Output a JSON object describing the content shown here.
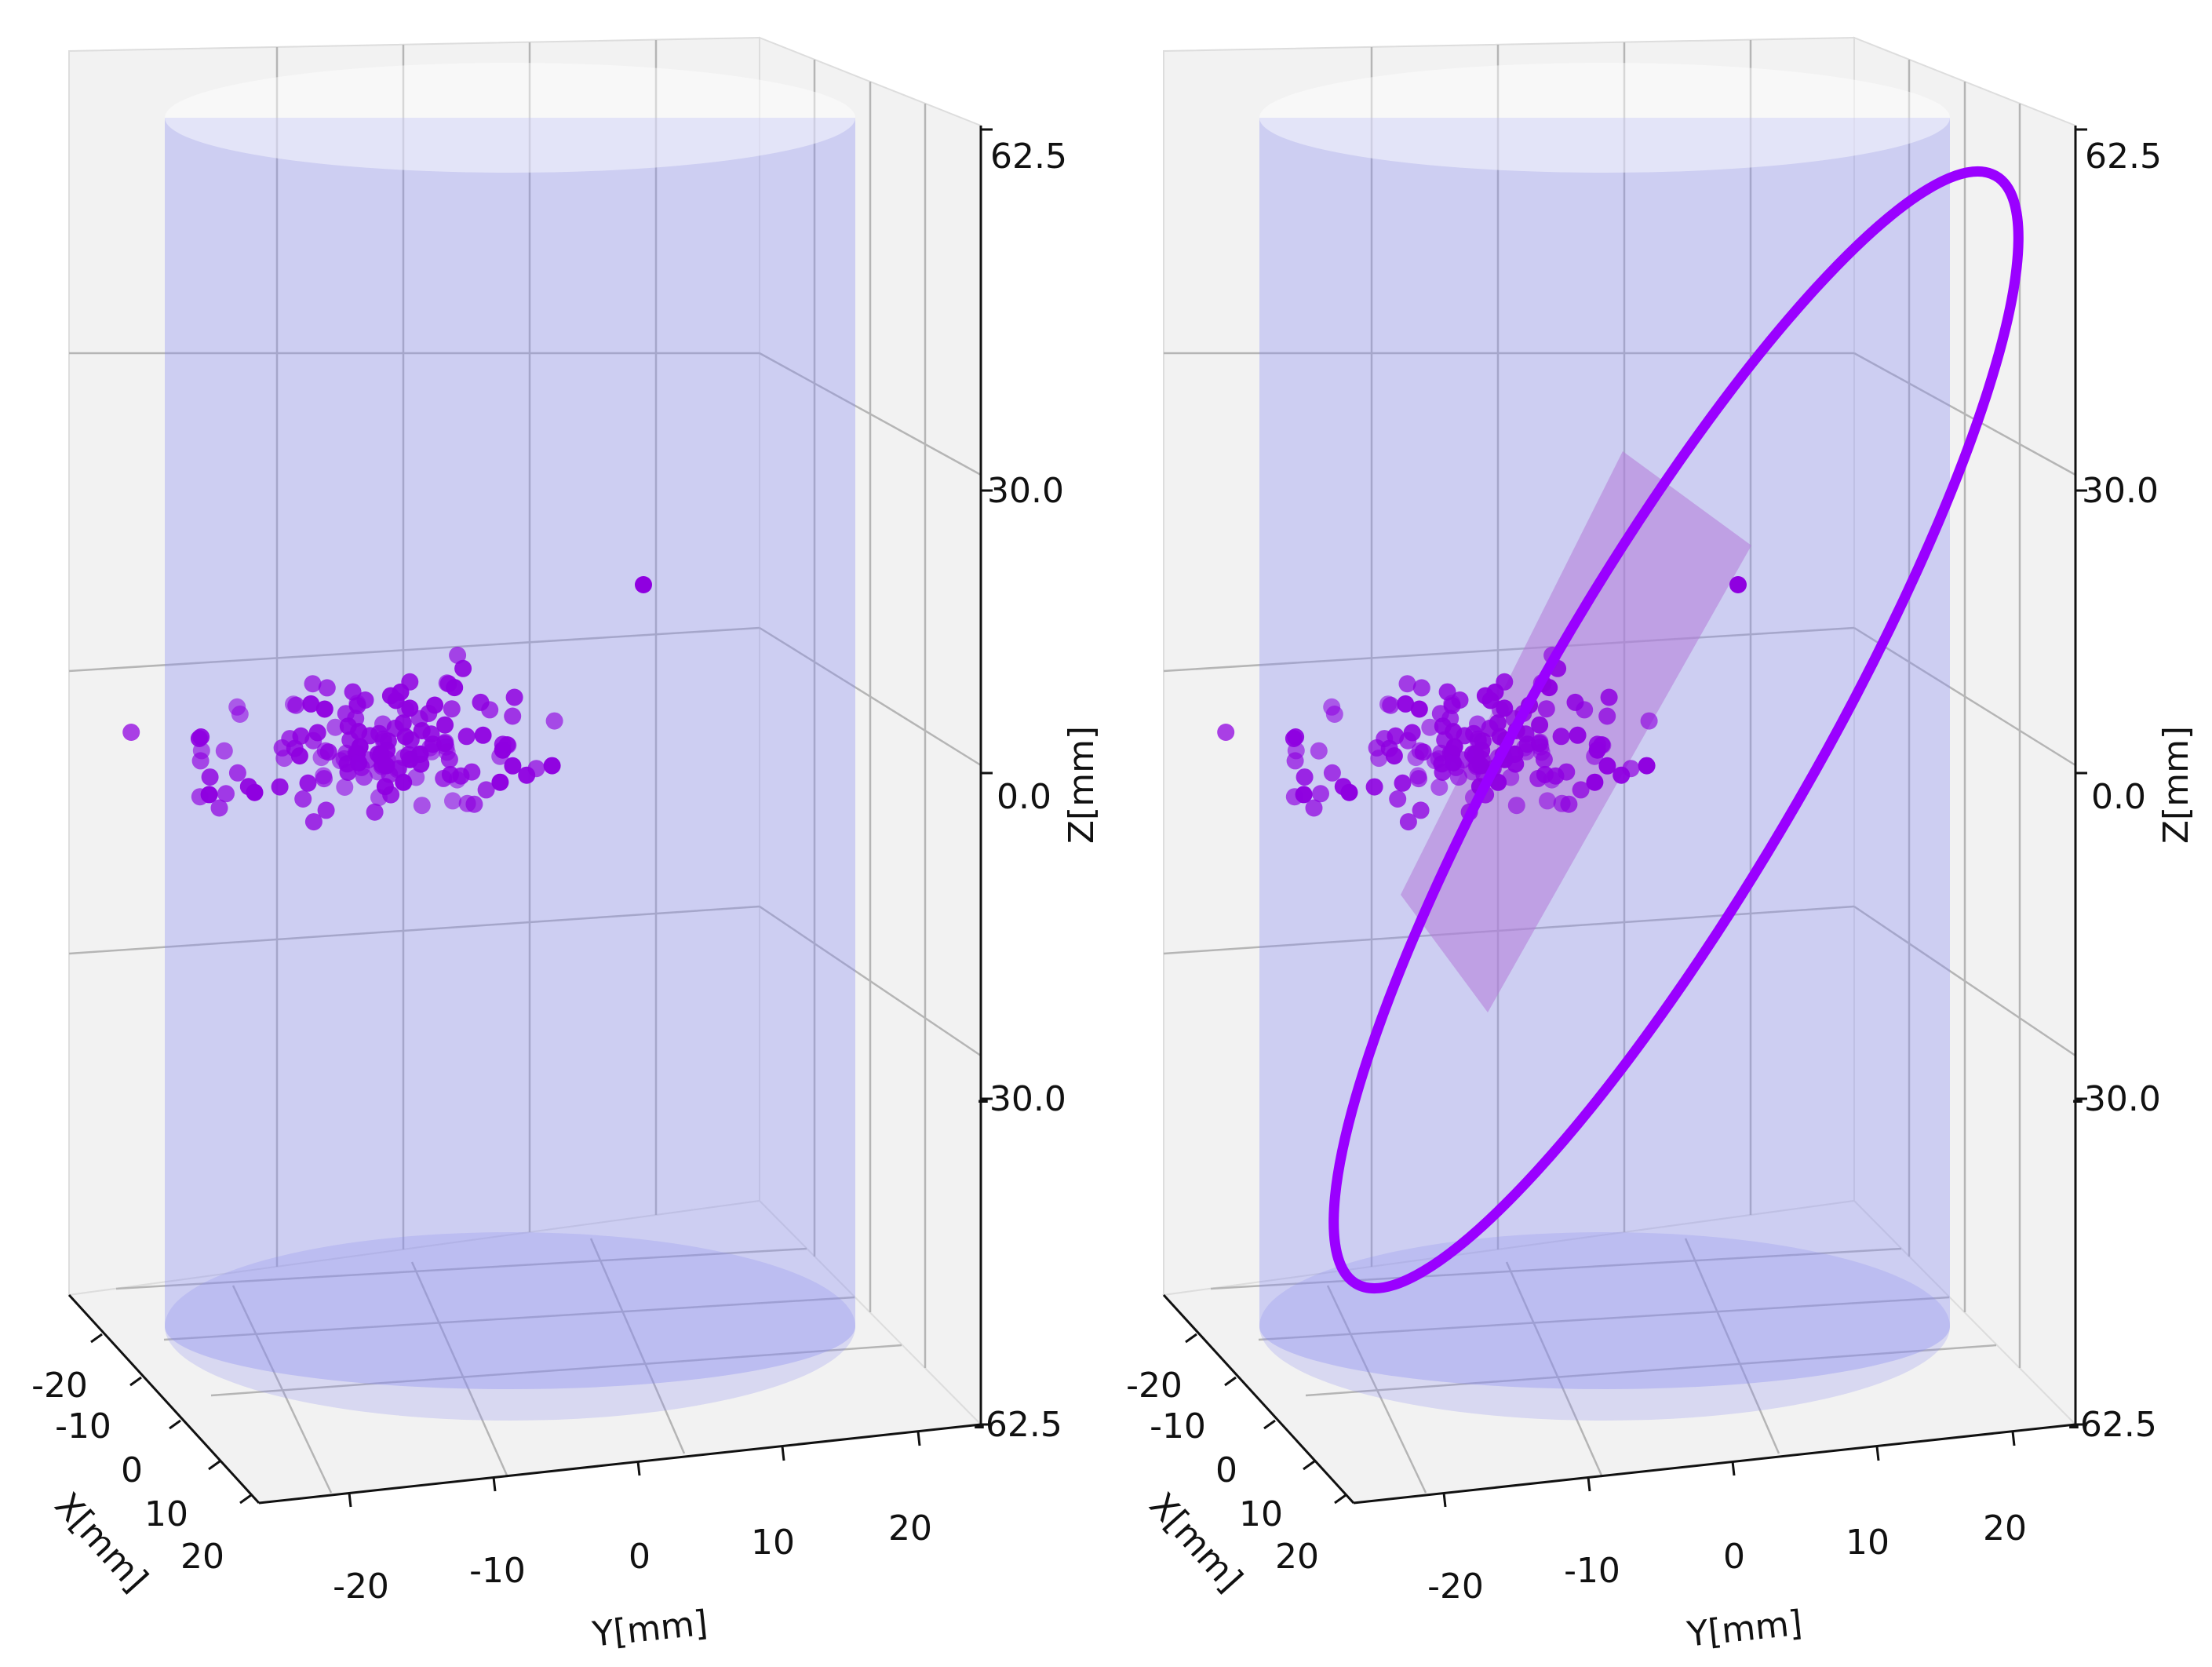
{
  "colors": {
    "pane": "#f2f2f2",
    "grid": "#b5b5b5",
    "axis": "#111111",
    "cylinder": "#8a8cf0",
    "points": "#8f00e0",
    "ring": "#9a00ff",
    "plane": "#b57ad8"
  },
  "chart_data": [
    {
      "type": "scatter3d",
      "panel": "left",
      "xlabel": "X[mm]",
      "ylabel": "Y[mm]",
      "zlabel": "Z[mm]",
      "xlim": [
        -28,
        28
      ],
      "ylim": [
        -28,
        28
      ],
      "zlim": [
        -62.5,
        62.5
      ],
      "x_ticks": [
        "-20",
        "-10",
        "0",
        "10",
        "20"
      ],
      "y_ticks": [
        "-20",
        "-10",
        "0",
        "10",
        "20"
      ],
      "z_ticks": [
        "62.5",
        "30.0",
        "0.0",
        "-30.0",
        "-62.5"
      ],
      "cylinder": {
        "radius_mm": 25,
        "z_range": [
          -62.5,
          62.5
        ]
      },
      "point_cloud": {
        "count": 150,
        "center_mm": [
          0,
          -7,
          8
        ],
        "spread_mm": [
          3,
          4,
          5
        ],
        "seed": 11
      },
      "ring": null,
      "plane": null
    },
    {
      "type": "scatter3d",
      "panel": "right",
      "xlabel": "X[mm]",
      "ylabel": "Y[mm]",
      "zlabel": "Z[mm]",
      "xlim": [
        -28,
        28
      ],
      "ylim": [
        -28,
        28
      ],
      "zlim": [
        -62.5,
        62.5
      ],
      "x_ticks": [
        "-20",
        "-10",
        "0",
        "10",
        "20"
      ],
      "y_ticks": [
        "-20",
        "-10",
        "0",
        "10",
        "20"
      ],
      "z_ticks": [
        "62.5",
        "30.0",
        "0.0",
        "-30.0",
        "-62.5"
      ],
      "cylinder": {
        "radius_mm": 25,
        "z_range": [
          -62.5,
          62.5
        ]
      },
      "point_cloud": {
        "count": 150,
        "center_mm": [
          0,
          -7,
          8
        ],
        "spread_mm": [
          3,
          4,
          5
        ],
        "seed": 11
      },
      "ring": {
        "center_mm": [
          0,
          -3,
          8
        ],
        "z_extent_mm": [
          -50,
          62
        ],
        "tilt_deg": 52,
        "fitted": true
      },
      "plane": {
        "center_mm": [
          0,
          -7,
          6
        ],
        "extent_mm": [
          -30,
          30
        ],
        "tilt_deg": 52
      }
    }
  ]
}
